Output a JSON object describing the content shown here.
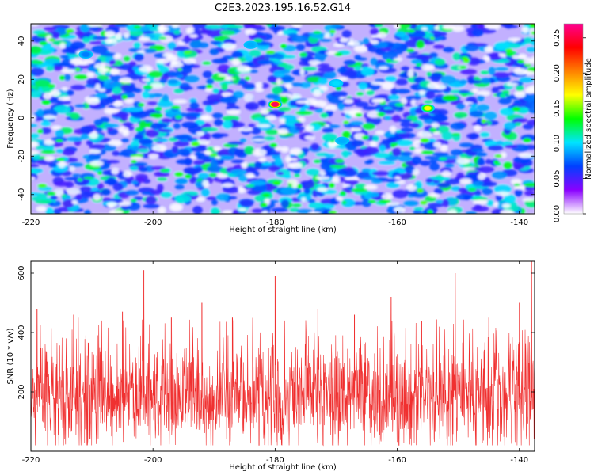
{
  "figure": {
    "title": "C2E3.2023.195.16.52.G14"
  },
  "chart_data": [
    {
      "type": "heatmap",
      "xlabel": "Height of straight line (km)",
      "ylabel": "Frequency (Hz)",
      "xlim": [
        -220,
        -137.5
      ],
      "ylim": [
        -50,
        49
      ],
      "xticks": [
        -220,
        -200,
        -180,
        -160,
        -140
      ],
      "yticks": [
        -40,
        -20,
        0,
        20,
        40
      ],
      "colorbar": {
        "label": "Normalized spectral amplitude",
        "range": [
          0,
          0.27
        ],
        "ticks": [
          "0.00",
          "0.05",
          "0.10",
          "0.15",
          "0.20",
          "0.25"
        ],
        "colormap": [
          "#ffffff",
          "#8a00ff",
          "#0040ff",
          "#00e5ff",
          "#00ff00",
          "#ffff00",
          "#ff8000",
          "#ff0000",
          "#ff0090"
        ]
      },
      "peaks": [
        {
          "x": -180,
          "y": 7,
          "value": 0.26
        },
        {
          "x": -155,
          "y": 5,
          "value": 0.17
        },
        {
          "x": -170,
          "y": 18,
          "value": 0.1
        },
        {
          "x": -184,
          "y": 38,
          "value": 0.09
        },
        {
          "x": -169,
          "y": -12,
          "value": 0.09
        },
        {
          "x": -211,
          "y": 33,
          "value": 0.08
        }
      ],
      "background_level": 0.03
    },
    {
      "type": "line",
      "xlabel": "Height of straight line (km)",
      "ylabel": "SNR (10 * v/v)",
      "xlim": [
        -220,
        -137.5
      ],
      "ylim": [
        0,
        640
      ],
      "xticks": [
        -220,
        -200,
        -180,
        -160,
        -140
      ],
      "yticks": [
        200,
        400,
        600
      ],
      "color": "#f03030",
      "baseline_mean": 180,
      "noise_range": [
        20,
        420
      ],
      "spikes": [
        {
          "x": -219,
          "y": 480
        },
        {
          "x": -213,
          "y": 460
        },
        {
          "x": -205,
          "y": 470
        },
        {
          "x": -201.5,
          "y": 610
        },
        {
          "x": -197,
          "y": 450
        },
        {
          "x": -192,
          "y": 500
        },
        {
          "x": -187,
          "y": 450
        },
        {
          "x": -180,
          "y": 590
        },
        {
          "x": -173,
          "y": 480
        },
        {
          "x": -167,
          "y": 460
        },
        {
          "x": -161,
          "y": 520
        },
        {
          "x": -156,
          "y": 440
        },
        {
          "x": -150.5,
          "y": 600
        },
        {
          "x": -145,
          "y": 450
        },
        {
          "x": -140,
          "y": 500
        },
        {
          "x": -138,
          "y": 640
        }
      ]
    }
  ]
}
